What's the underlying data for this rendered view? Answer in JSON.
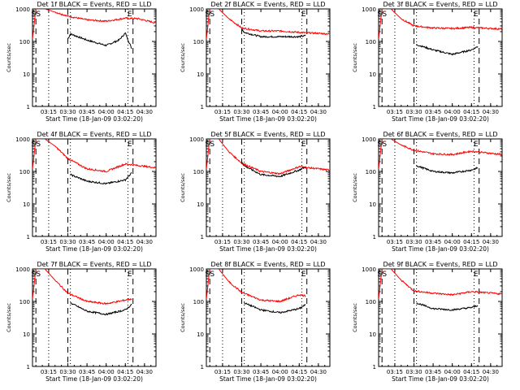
{
  "colors": {
    "events": "#000000",
    "lld": "#ff0000",
    "axis": "#000000",
    "background": "#ffffff"
  },
  "common": {
    "subtitle": "BLACK = Events, RED = LLD",
    "xlabel": "Start Time (18-Jan-09 03:02:20)",
    "ylabel": "Counts/sec",
    "x_ticks": [
      "03:15",
      "03:30",
      "03:45",
      "04:00",
      "04:15",
      "04:30"
    ],
    "y_ticks": [
      "1",
      "10",
      "100",
      "1000"
    ],
    "marker_s": "S",
    "marker_e": "E"
  },
  "chart_data": [
    {
      "type": "line",
      "title": "Det 1f",
      "ylim": [
        1,
        1000
      ],
      "xlim": [
        "03:02:20",
        "04:39:00"
      ],
      "yscale": "log",
      "grid": false,
      "series": [
        {
          "name": "Events",
          "color": "#000000",
          "x": [
            "03:30",
            "03:32",
            "03:45",
            "04:00",
            "04:10",
            "04:15",
            "04:20"
          ],
          "y": [
            120,
            170,
            110,
            75,
            110,
            180,
            60
          ]
        },
        {
          "name": "LLD",
          "color": "#ff0000",
          "x": [
            "03:02:20",
            "03:05",
            "03:12",
            "03:20",
            "03:30",
            "03:45",
            "04:00",
            "04:15",
            "04:25",
            "04:39"
          ],
          "y": [
            120,
            1000,
            1000,
            800,
            600,
            460,
            420,
            520,
            500,
            370
          ]
        }
      ],
      "vlines_dashed": [
        "03:05",
        "03:30",
        "04:21"
      ],
      "vlines_dotted": [
        "03:15",
        "03:32",
        "04:17"
      ]
    },
    {
      "type": "line",
      "title": "Det 2f",
      "ylim": [
        1,
        1000
      ],
      "xlim": [
        "03:02:20",
        "04:39:00"
      ],
      "yscale": "log",
      "grid": false,
      "series": [
        {
          "name": "Events",
          "color": "#000000",
          "x": [
            "03:30",
            "03:32",
            "03:45",
            "04:00",
            "04:15",
            "04:20"
          ],
          "y": [
            250,
            190,
            140,
            140,
            140,
            150
          ]
        },
        {
          "name": "LLD",
          "color": "#ff0000",
          "x": [
            "03:02:20",
            "03:05",
            "03:12",
            "03:20",
            "03:30",
            "03:45",
            "04:00",
            "04:15",
            "04:39"
          ],
          "y": [
            120,
            1000,
            1000,
            500,
            260,
            210,
            210,
            190,
            170
          ]
        }
      ],
      "vlines_dashed": [
        "03:05",
        "03:30",
        "04:21"
      ],
      "vlines_dotted": [
        "03:15",
        "03:32",
        "04:17"
      ]
    },
    {
      "type": "line",
      "title": "Det 3f",
      "ylim": [
        1,
        1000
      ],
      "xlim": [
        "03:02:20",
        "04:39:00"
      ],
      "yscale": "log",
      "grid": false,
      "series": [
        {
          "name": "Events",
          "color": "#000000",
          "x": [
            "03:32",
            "03:45",
            "04:00",
            "04:15",
            "04:20"
          ],
          "y": [
            80,
            55,
            40,
            55,
            70
          ]
        },
        {
          "name": "LLD",
          "color": "#ff0000",
          "x": [
            "03:02:20",
            "03:05",
            "03:12",
            "03:20",
            "03:30",
            "03:45",
            "04:00",
            "04:15",
            "04:39"
          ],
          "y": [
            120,
            1000,
            1000,
            500,
            300,
            260,
            250,
            270,
            240
          ]
        }
      ],
      "vlines_dashed": [
        "03:05",
        "03:30",
        "04:21"
      ],
      "vlines_dotted": [
        "03:15",
        "03:32",
        "04:17"
      ]
    },
    {
      "type": "line",
      "title": "Det 4f",
      "ylim": [
        1,
        1000
      ],
      "xlim": [
        "03:02:20",
        "04:39:00"
      ],
      "yscale": "log",
      "grid": false,
      "series": [
        {
          "name": "Events",
          "color": "#000000",
          "x": [
            "03:32",
            "03:45",
            "04:00",
            "04:15",
            "04:20"
          ],
          "y": [
            80,
            50,
            42,
            55,
            90
          ]
        },
        {
          "name": "LLD",
          "color": "#ff0000",
          "x": [
            "03:02:20",
            "03:05",
            "03:12",
            "03:20",
            "03:30",
            "03:45",
            "04:00",
            "04:15",
            "04:39"
          ],
          "y": [
            120,
            1000,
            1000,
            600,
            250,
            120,
            100,
            170,
            130
          ]
        }
      ],
      "vlines_dashed": [
        "03:05",
        "03:30",
        "04:21"
      ],
      "vlines_dotted": [
        "03:15",
        "03:32",
        "04:17"
      ]
    },
    {
      "type": "line",
      "title": "Det 5f",
      "ylim": [
        1,
        1000
      ],
      "xlim": [
        "03:02:20",
        "04:39:00"
      ],
      "yscale": "log",
      "grid": false,
      "series": [
        {
          "name": "Events",
          "color": "#000000",
          "x": [
            "03:30",
            "03:32",
            "03:45",
            "04:00",
            "04:15",
            "04:20"
          ],
          "y": [
            200,
            150,
            80,
            70,
            110,
            140
          ]
        },
        {
          "name": "LLD",
          "color": "#ff0000",
          "x": [
            "03:02:20",
            "03:05",
            "03:12",
            "03:20",
            "03:30",
            "03:45",
            "04:00",
            "04:15",
            "04:39"
          ],
          "y": [
            120,
            1000,
            1000,
            400,
            180,
            100,
            85,
            140,
            110
          ]
        }
      ],
      "vlines_dashed": [
        "03:05",
        "03:30",
        "04:21"
      ],
      "vlines_dotted": [
        "03:15",
        "03:32",
        "04:17"
      ]
    },
    {
      "type": "line",
      "title": "Det 6f",
      "ylim": [
        1,
        1000
      ],
      "xlim": [
        "03:02:20",
        "04:39:00"
      ],
      "yscale": "log",
      "grid": false,
      "series": [
        {
          "name": "Events",
          "color": "#000000",
          "x": [
            "03:32",
            "03:45",
            "04:00",
            "04:15",
            "04:20"
          ],
          "y": [
            150,
            100,
            90,
            110,
            130
          ]
        },
        {
          "name": "LLD",
          "color": "#ff0000",
          "x": [
            "03:02:20",
            "03:05",
            "03:12",
            "03:20",
            "03:30",
            "03:45",
            "04:00",
            "04:15",
            "04:39"
          ],
          "y": [
            120,
            1000,
            1000,
            650,
            450,
            350,
            330,
            420,
            330
          ]
        }
      ],
      "vlines_dashed": [
        "03:05",
        "03:30",
        "04:21"
      ],
      "vlines_dotted": [
        "03:15",
        "03:32",
        "04:17"
      ]
    },
    {
      "type": "line",
      "title": "Det 7f",
      "ylim": [
        1,
        1000
      ],
      "xlim": [
        "03:02:20",
        "04:39:00"
      ],
      "yscale": "log",
      "grid": false,
      "series": [
        {
          "name": "Events",
          "color": "#000000",
          "x": [
            "03:32",
            "03:45",
            "04:00",
            "04:15",
            "04:20"
          ],
          "y": [
            90,
            50,
            40,
            55,
            80
          ]
        },
        {
          "name": "LLD",
          "color": "#ff0000",
          "x": [
            "03:02:20",
            "03:05",
            "03:12",
            "03:20",
            "03:30",
            "03:45",
            "04:00",
            "04:15",
            "04:20"
          ],
          "y": [
            120,
            1000,
            1000,
            450,
            180,
            100,
            85,
            110,
            120
          ]
        }
      ],
      "vlines_dashed": [
        "03:05",
        "03:30",
        "04:21"
      ],
      "vlines_dotted": [
        "03:15",
        "03:32",
        "04:17"
      ]
    },
    {
      "type": "line",
      "title": "Det 8f",
      "ylim": [
        1,
        1000
      ],
      "xlim": [
        "03:02:20",
        "04:39:00"
      ],
      "yscale": "log",
      "grid": false,
      "series": [
        {
          "name": "Events",
          "color": "#000000",
          "x": [
            "03:32",
            "03:45",
            "04:00",
            "04:15",
            "04:20"
          ],
          "y": [
            90,
            55,
            45,
            60,
            80
          ]
        },
        {
          "name": "LLD",
          "color": "#ff0000",
          "x": [
            "03:02:20",
            "03:05",
            "03:12",
            "03:20",
            "03:30",
            "03:45",
            "04:00",
            "04:15",
            "04:20"
          ],
          "y": [
            120,
            1000,
            1000,
            400,
            190,
            110,
            100,
            160,
            150
          ]
        }
      ],
      "vlines_dashed": [
        "03:05",
        "03:30",
        "04:21"
      ],
      "vlines_dotted": [
        "03:15",
        "03:32",
        "04:17"
      ]
    },
    {
      "type": "line",
      "title": "Det 9f",
      "ylim": [
        1,
        1000
      ],
      "xlim": [
        "03:02:20",
        "04:39:00"
      ],
      "yscale": "log",
      "grid": false,
      "series": [
        {
          "name": "Events",
          "color": "#000000",
          "x": [
            "03:32",
            "03:45",
            "04:00",
            "04:15",
            "04:20"
          ],
          "y": [
            90,
            60,
            55,
            65,
            75
          ]
        },
        {
          "name": "LLD",
          "color": "#ff0000",
          "x": [
            "03:02:20",
            "03:05",
            "03:12",
            "03:20",
            "03:30",
            "03:45",
            "04:00",
            "04:15",
            "04:39"
          ],
          "y": [
            120,
            1000,
            1000,
            450,
            210,
            180,
            160,
            200,
            170
          ]
        }
      ],
      "vlines_dashed": [
        "03:05",
        "03:30",
        "04:21"
      ],
      "vlines_dotted": [
        "03:15",
        "03:32",
        "04:17"
      ]
    }
  ]
}
